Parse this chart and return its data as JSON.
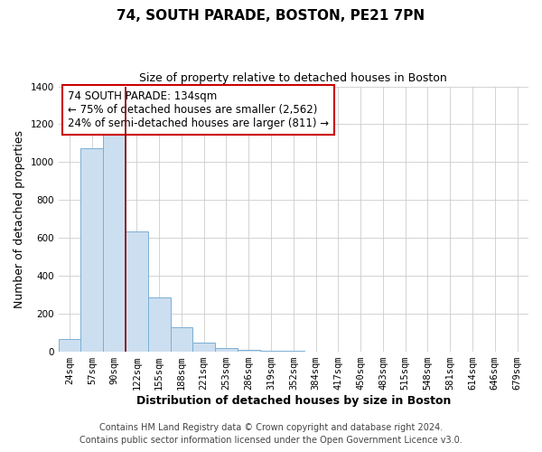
{
  "title": "74, SOUTH PARADE, BOSTON, PE21 7PN",
  "subtitle": "Size of property relative to detached houses in Boston",
  "xlabel": "Distribution of detached houses by size in Boston",
  "ylabel": "Number of detached properties",
  "categories": [
    "24sqm",
    "57sqm",
    "90sqm",
    "122sqm",
    "155sqm",
    "188sqm",
    "221sqm",
    "253sqm",
    "286sqm",
    "319sqm",
    "352sqm",
    "384sqm",
    "417sqm",
    "450sqm",
    "483sqm",
    "515sqm",
    "548sqm",
    "581sqm",
    "614sqm",
    "646sqm",
    "679sqm"
  ],
  "values": [
    65,
    1075,
    1155,
    635,
    285,
    130,
    48,
    18,
    8,
    5,
    3,
    2,
    1,
    1,
    1,
    1,
    1,
    0,
    0,
    0,
    0
  ],
  "bar_color": "#ccdff0",
  "bar_edgecolor": "#7aafd4",
  "vline_x": 2.5,
  "vline_color": "#8b0000",
  "annotation_title": "74 SOUTH PARADE: 134sqm",
  "annotation_line1": "← 75% of detached houses are smaller (2,562)",
  "annotation_line2": "24% of semi-detached houses are larger (811) →",
  "annotation_box_edgecolor": "#cc0000",
  "footer1": "Contains HM Land Registry data © Crown copyright and database right 2024.",
  "footer2": "Contains public sector information licensed under the Open Government Licence v3.0.",
  "ylim": [
    0,
    1400
  ],
  "yticks": [
    0,
    200,
    400,
    600,
    800,
    1000,
    1200,
    1400
  ],
  "background_color": "#ffffff",
  "grid_color": "#cccccc",
  "title_fontsize": 11,
  "subtitle_fontsize": 9,
  "axis_label_fontsize": 9,
  "tick_fontsize": 7.5,
  "annotation_fontsize": 8.5,
  "footer_fontsize": 7
}
